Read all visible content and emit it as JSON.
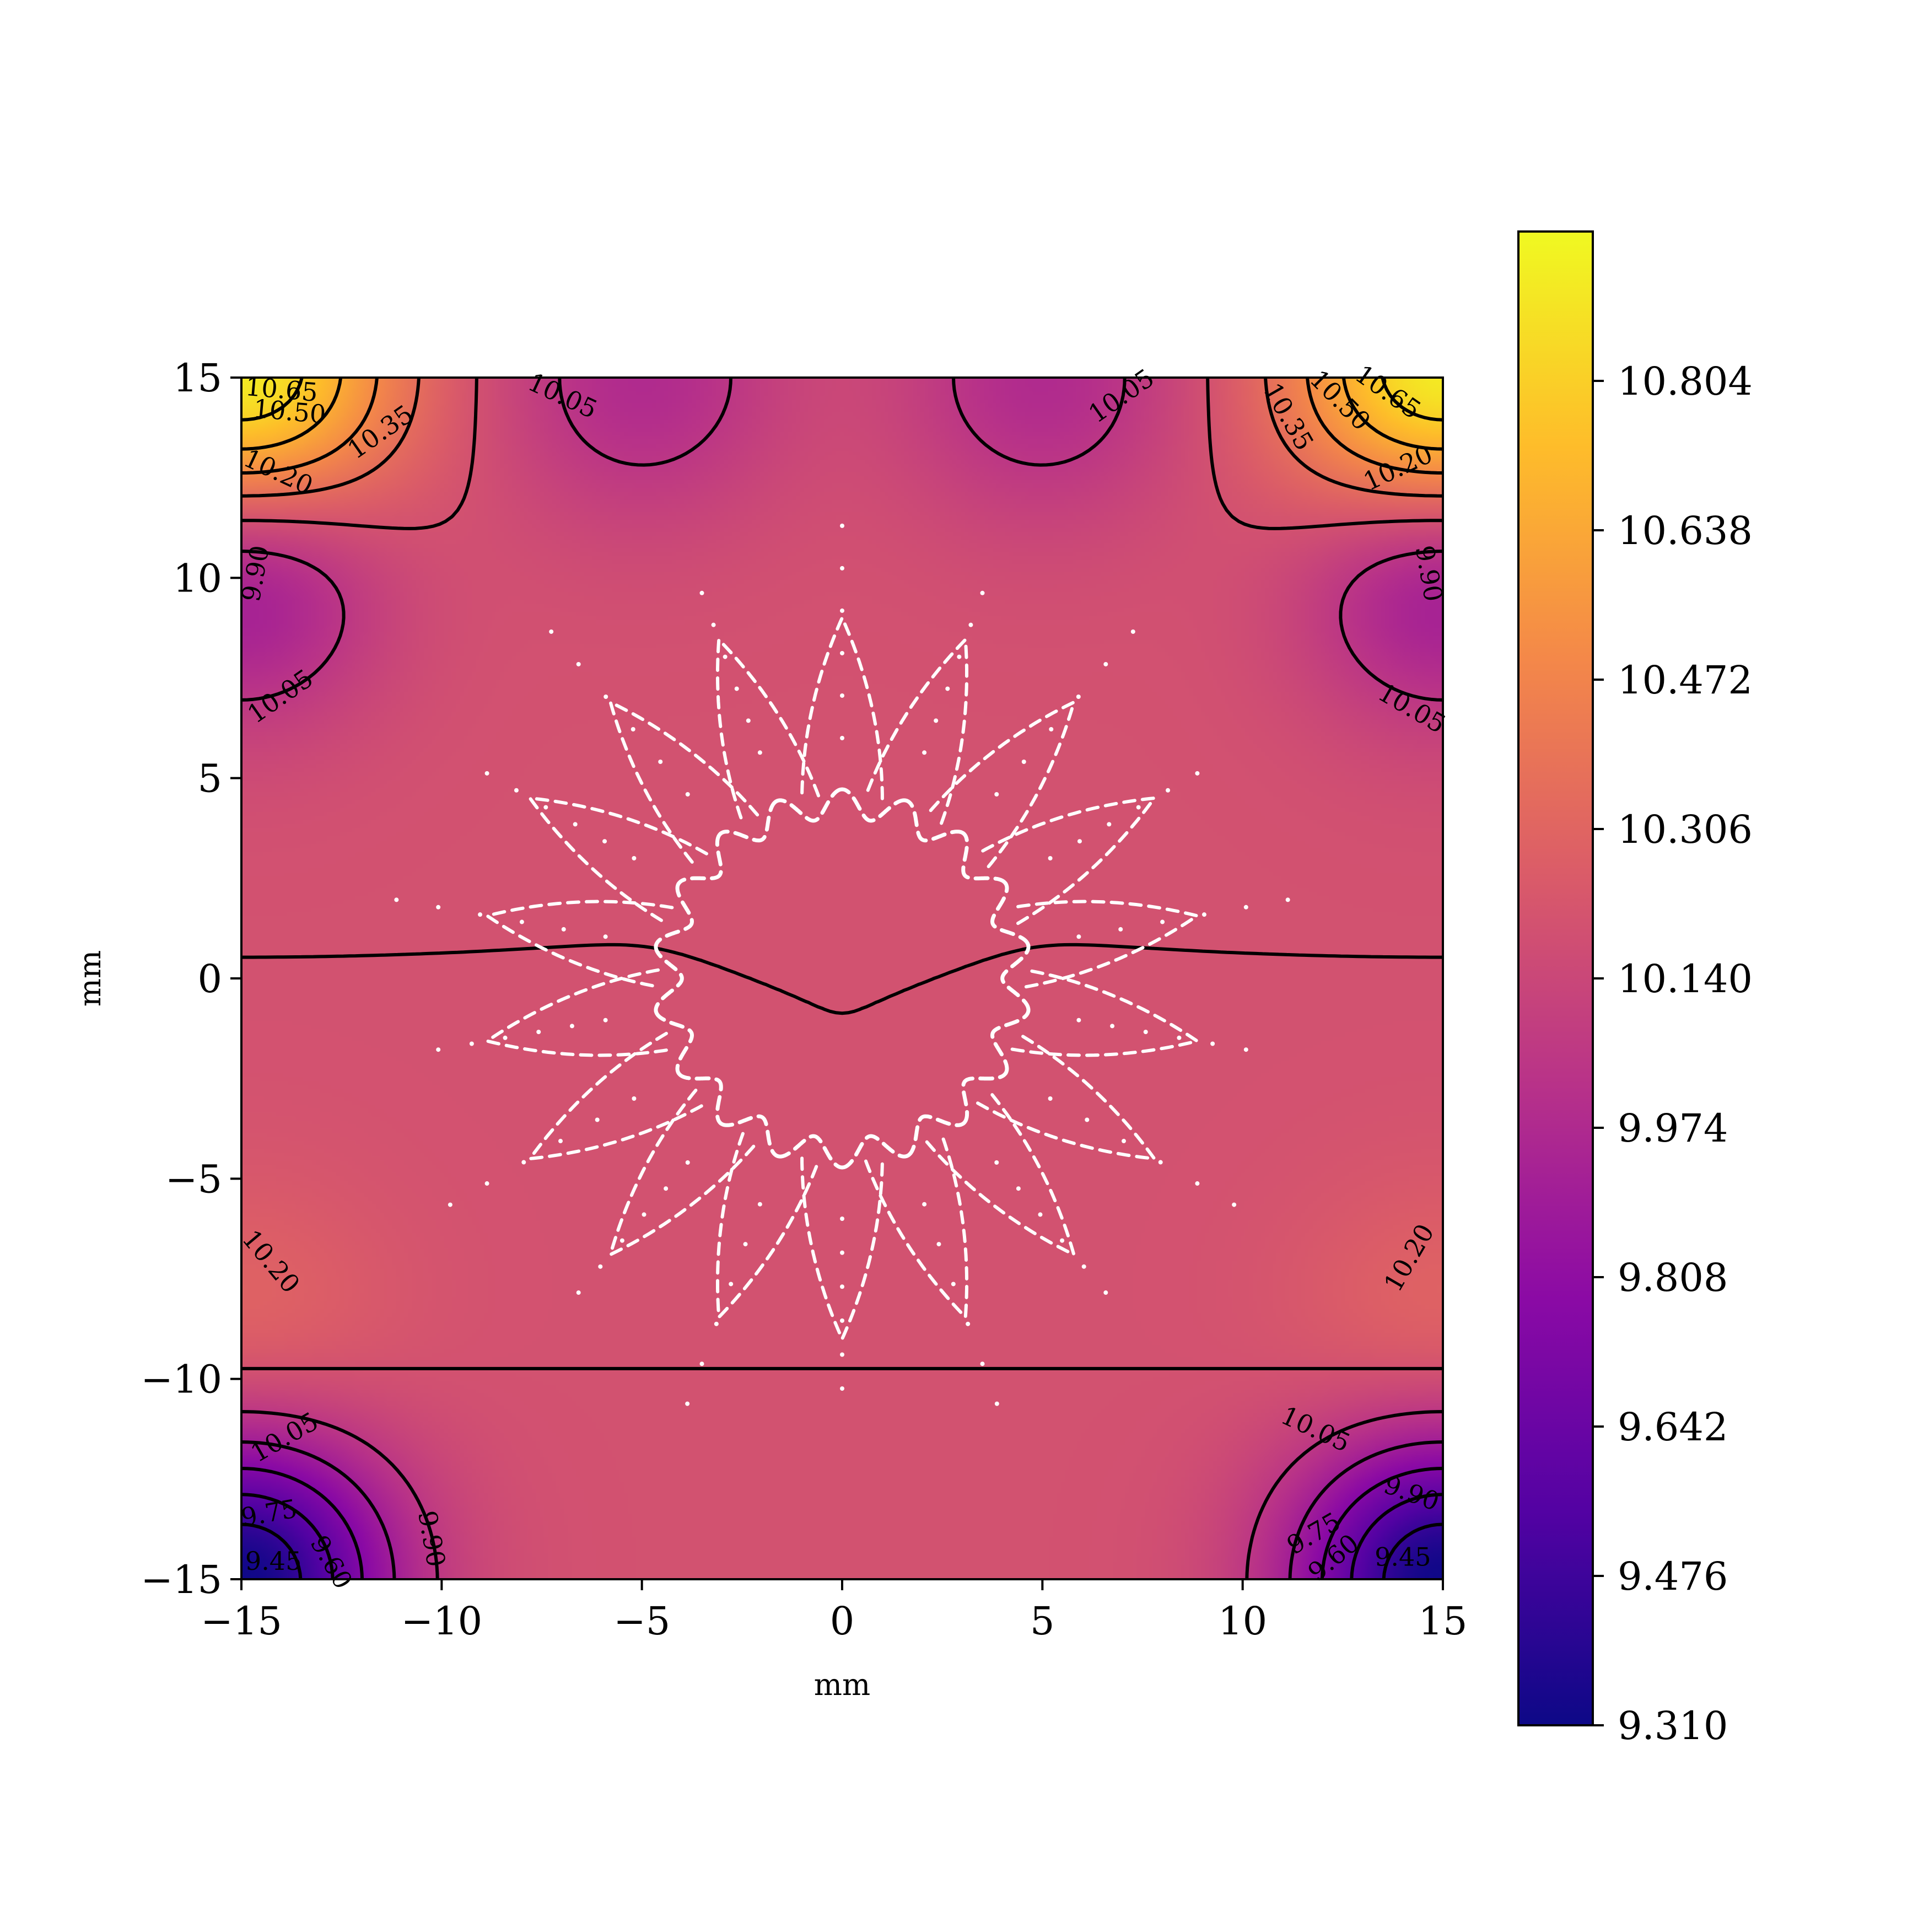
{
  "chart_data": {
    "type": "heatmap",
    "title": "",
    "xlabel": "mm",
    "ylabel": "mm",
    "xlim": [
      -15,
      15
    ],
    "ylim": [
      -15,
      15
    ],
    "x_ticks": [
      -15,
      -10,
      -5,
      0,
      5,
      10,
      15
    ],
    "x_tick_labels": [
      "−15",
      "−10",
      "−5",
      "0",
      "5",
      "10",
      "15"
    ],
    "y_ticks": [
      -15,
      -10,
      -5,
      0,
      5,
      10,
      15
    ],
    "y_tick_labels": [
      "−15",
      "−10",
      "−5",
      "0",
      "5",
      "10",
      "15"
    ],
    "grid": false,
    "colormap": "plasma",
    "colormap_stops": [
      "#0d0887",
      "#5302a3",
      "#8b0aa5",
      "#b83289",
      "#db5c68",
      "#f48849",
      "#febd2a",
      "#f0f921"
    ],
    "colorbar": {
      "range": [
        9.31,
        10.97
      ],
      "ticks": [
        9.31,
        9.476,
        9.642,
        9.808,
        9.974,
        10.14,
        10.306,
        10.472,
        10.638,
        10.804
      ],
      "tick_labels": [
        "9.310",
        "9.476",
        "9.642",
        "9.808",
        "9.974",
        "10.140",
        "10.306",
        "10.472",
        "10.638",
        "10.804"
      ]
    },
    "field_base_value": 10.2,
    "corner_extrema": [
      {
        "location": "top-left",
        "x": -15,
        "y": 15,
        "value": 10.95
      },
      {
        "location": "top-right",
        "x": 15,
        "y": 15,
        "value": 10.95
      },
      {
        "location": "bottom-left",
        "x": -15,
        "y": -15,
        "value": 9.31
      },
      {
        "location": "bottom-right",
        "x": 15,
        "y": -15,
        "value": 9.31
      },
      {
        "location": "left-upper",
        "x": -15,
        "y": 10,
        "value": 9.85
      },
      {
        "location": "right-upper",
        "x": 15,
        "y": 10,
        "value": 9.85
      },
      {
        "location": "left-lower",
        "x": -15,
        "y": -9,
        "value": 10.32
      },
      {
        "location": "right-lower",
        "x": 15,
        "y": -9,
        "value": 10.32
      },
      {
        "location": "top-edge-left",
        "x": -5,
        "y": 15,
        "value": 9.98
      },
      {
        "location": "top-edge-right",
        "x": 5,
        "y": 15,
        "value": 9.98
      }
    ],
    "contour_labels": [
      {
        "text": "10.65",
        "x": -14.0,
        "y": 14.65,
        "rotate": 5
      },
      {
        "text": "10.50",
        "x": -13.8,
        "y": 14.1,
        "rotate": 5
      },
      {
        "text": "10.35",
        "x": -11.5,
        "y": 13.6,
        "rotate": -35
      },
      {
        "text": "10.20",
        "x": -14.1,
        "y": 12.6,
        "rotate": 25
      },
      {
        "text": "9.90",
        "x": -14.6,
        "y": 10.1,
        "rotate": -80
      },
      {
        "text": "10.05",
        "x": -14.0,
        "y": 7.0,
        "rotate": -35
      },
      {
        "text": "10.05",
        "x": -7.0,
        "y": 14.5,
        "rotate": 25
      },
      {
        "text": "10.05",
        "x": 7.0,
        "y": 14.5,
        "rotate": -35
      },
      {
        "text": "10.35",
        "x": 11.1,
        "y": 14.0,
        "rotate": 60
      },
      {
        "text": "10.50",
        "x": 12.4,
        "y": 14.4,
        "rotate": 45
      },
      {
        "text": "10.65",
        "x": 13.6,
        "y": 14.6,
        "rotate": 35
      },
      {
        "text": "10.20",
        "x": 13.9,
        "y": 12.7,
        "rotate": -25
      },
      {
        "text": "9.90",
        "x": 14.6,
        "y": 10.1,
        "rotate": 80
      },
      {
        "text": "10.05",
        "x": 14.2,
        "y": 6.7,
        "rotate": 30
      },
      {
        "text": "10.20",
        "x": -14.3,
        "y": -7.1,
        "rotate": 50
      },
      {
        "text": "10.05",
        "x": -13.9,
        "y": -11.5,
        "rotate": -30
      },
      {
        "text": "9.75",
        "x": -14.3,
        "y": -13.4,
        "rotate": -10
      },
      {
        "text": "9.45",
        "x": -14.2,
        "y": -14.6,
        "rotate": 0
      },
      {
        "text": "9.60",
        "x": -12.8,
        "y": -14.6,
        "rotate": 60
      },
      {
        "text": "9.90",
        "x": -10.3,
        "y": -14.0,
        "rotate": 80
      },
      {
        "text": "10.20",
        "x": 14.2,
        "y": -7.0,
        "rotate": -60
      },
      {
        "text": "10.05",
        "x": 11.8,
        "y": -11.3,
        "rotate": 25
      },
      {
        "text": "9.90",
        "x": 14.2,
        "y": -12.9,
        "rotate": 20
      },
      {
        "text": "9.75",
        "x": 11.8,
        "y": -13.9,
        "rotate": -30
      },
      {
        "text": "9.60",
        "x": 12.3,
        "y": -14.5,
        "rotate": -40
      },
      {
        "text": "9.45",
        "x": 14.0,
        "y": -14.5,
        "rotate": 0
      }
    ],
    "overlay": {
      "description_style": "white dashed star-shaped boundary with radial dotted spokes",
      "lobes": 18,
      "inner_radius": 4.0,
      "lobe_outer_radius": 9.0,
      "dot_radius_range": [
        6.0,
        11.3
      ]
    }
  }
}
